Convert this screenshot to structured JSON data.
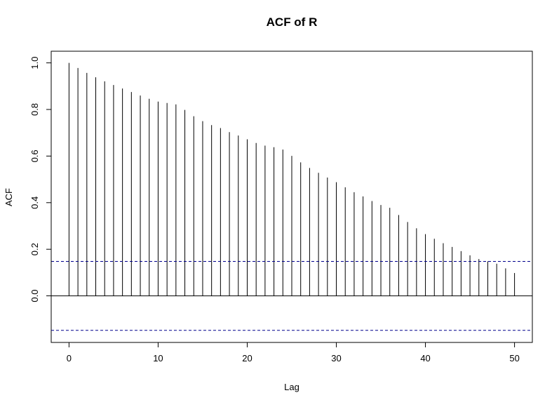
{
  "chart_data": {
    "type": "bar",
    "title": "ACF of R",
    "xlabel": "Lag",
    "ylabel": "ACF",
    "xlim": [
      -2,
      52
    ],
    "ylim": [
      -0.2,
      1.05
    ],
    "x_ticks": [
      0,
      10,
      20,
      30,
      40,
      50
    ],
    "x_tick_labels": [
      "0",
      "10",
      "20",
      "30",
      "40",
      "50"
    ],
    "y_ticks": [
      0.0,
      0.2,
      0.4,
      0.6,
      0.8,
      1.0
    ],
    "y_tick_labels": [
      "0.0",
      "0.2",
      "0.4",
      "0.6",
      "0.8",
      "1.0"
    ],
    "grid": false,
    "lags": [
      0,
      1,
      2,
      3,
      4,
      5,
      6,
      7,
      8,
      9,
      10,
      11,
      12,
      13,
      14,
      15,
      16,
      17,
      18,
      19,
      20,
      21,
      22,
      23,
      24,
      25,
      26,
      27,
      28,
      29,
      30,
      31,
      32,
      33,
      34,
      35,
      36,
      37,
      38,
      39,
      40,
      41,
      42,
      43,
      44,
      45,
      46,
      47,
      48,
      49,
      50
    ],
    "values": [
      1.0,
      0.978,
      0.957,
      0.938,
      0.921,
      0.905,
      0.89,
      0.875,
      0.86,
      0.846,
      0.834,
      0.828,
      0.822,
      0.798,
      0.771,
      0.75,
      0.733,
      0.72,
      0.703,
      0.688,
      0.672,
      0.656,
      0.645,
      0.638,
      0.628,
      0.601,
      0.573,
      0.549,
      0.528,
      0.508,
      0.488,
      0.466,
      0.445,
      0.427,
      0.407,
      0.39,
      0.378,
      0.347,
      0.317,
      0.29,
      0.265,
      0.245,
      0.226,
      0.21,
      0.192,
      0.174,
      0.158,
      0.148,
      0.138,
      0.118,
      0.098
    ],
    "confidence_bound": 0.148,
    "colors": {
      "bars": "#000000",
      "confidence": "#00008B",
      "zero_line": "#000000"
    }
  }
}
